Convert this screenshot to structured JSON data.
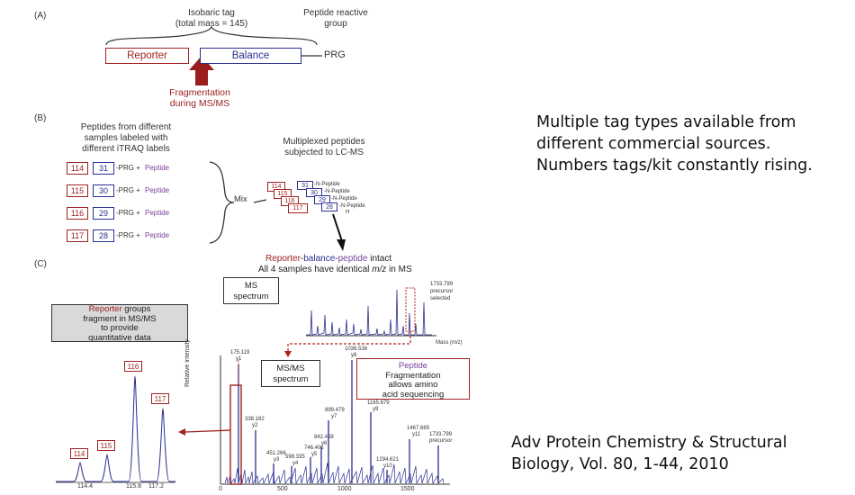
{
  "panelA": {
    "label": "(A)",
    "isobaric_line1": "Isobaric tag",
    "isobaric_line2": "(total mass = 145)",
    "prg_group_line1": "Peptide reactive",
    "prg_group_line2": "group",
    "reporter": "Reporter",
    "balance": "Balance",
    "prg": "PRG",
    "frag_line1": "Fragmentation",
    "frag_line2": "during MS/MS",
    "colors": {
      "reporter": "#a32020",
      "balance": "#2b2f8f"
    }
  },
  "panelB": {
    "label": "(B)",
    "left_title": [
      "Peptides from different",
      "samples labeled with",
      "different iTRAQ labels"
    ],
    "right_title": [
      "Multiplexed peptides",
      "subjected to LC-MS"
    ],
    "rows": [
      {
        "reporter": "114",
        "balance": "31",
        "prg": "-PRG +",
        "peptide": "Peptide"
      },
      {
        "reporter": "115",
        "balance": "30",
        "prg": "-PRG +",
        "peptide": "Peptide"
      },
      {
        "reporter": "116",
        "balance": "29",
        "prg": "-PRG +",
        "peptide": "Peptide"
      },
      {
        "reporter": "117",
        "balance": "28",
        "prg": "-PRG +",
        "peptide": "Peptide"
      }
    ],
    "mix": "Mix",
    "stack": [
      {
        "reporter": "114",
        "balance": "31",
        "suffix": "-N-Peptide"
      },
      {
        "reporter": "115",
        "balance": "30",
        "suffix": "-N-Peptide"
      },
      {
        "reporter": "116",
        "balance": "29",
        "suffix": "-N-Peptide"
      },
      {
        "reporter": "117",
        "balance": "28",
        "suffix": "-N-Peptide"
      }
    ],
    "stack_h": "H"
  },
  "panelC": {
    "label": "(C)",
    "intact_reporter": "Reporter",
    "intact_dash1": "-",
    "intact_balance": "balance",
    "intact_dash2": "-",
    "intact_peptide": "peptide",
    "intact_rest": " intact",
    "identical_pre": "All 4 samples have identical ",
    "identical_mz": "m/z",
    "identical_post": " in MS",
    "ms_box": [
      "MS",
      "spectrum"
    ],
    "precursor": [
      "1733.799",
      "precursor",
      "selected"
    ],
    "mass_axis": "Mass (m/z)",
    "reporter_box_red": "Reporter",
    "reporter_box_rest": " groups",
    "reporter_box_lines": [
      "fragment in MS/MS",
      "to provide",
      "quantitative data"
    ],
    "msms_box": [
      "MS/MS",
      "spectrum"
    ],
    "peptide_box_title": "Peptide",
    "peptide_box_lines": [
      "Fragmentation",
      "allows amino",
      "acid sequencing"
    ],
    "y_axis": "Relative intensity",
    "zoom_labels": [
      "114",
      "115",
      "116",
      "117"
    ],
    "zoom_ticks": [
      "114.4",
      "115.8",
      "117.2"
    ],
    "peak_labels": [
      [
        "175.119",
        "y1"
      ],
      [
        "338.182",
        "y2"
      ],
      [
        "451.266",
        "y3"
      ],
      [
        "598.335",
        "y4"
      ],
      [
        "746.401",
        "y5"
      ],
      [
        "842.458",
        "y6"
      ],
      [
        "899.479",
        "y7"
      ],
      [
        "1036.536",
        "y8"
      ],
      [
        "1165.679",
        "y9"
      ],
      [
        "1294.621",
        "y10"
      ],
      [
        "1467.665",
        "y11"
      ],
      [
        "1733.799",
        "precursor"
      ]
    ],
    "x_ticks": [
      "0",
      "500",
      "1000",
      "1500"
    ]
  },
  "side_text": {
    "lines": [
      "Multiple tag types available from",
      "different commercial sources.",
      "Numbers tags/kit constantly rising."
    ]
  },
  "citation": {
    "lines": [
      "Adv Protein Chemistry & Structural",
      "Biology, Vol. 80, 1-44, 2010"
    ]
  }
}
